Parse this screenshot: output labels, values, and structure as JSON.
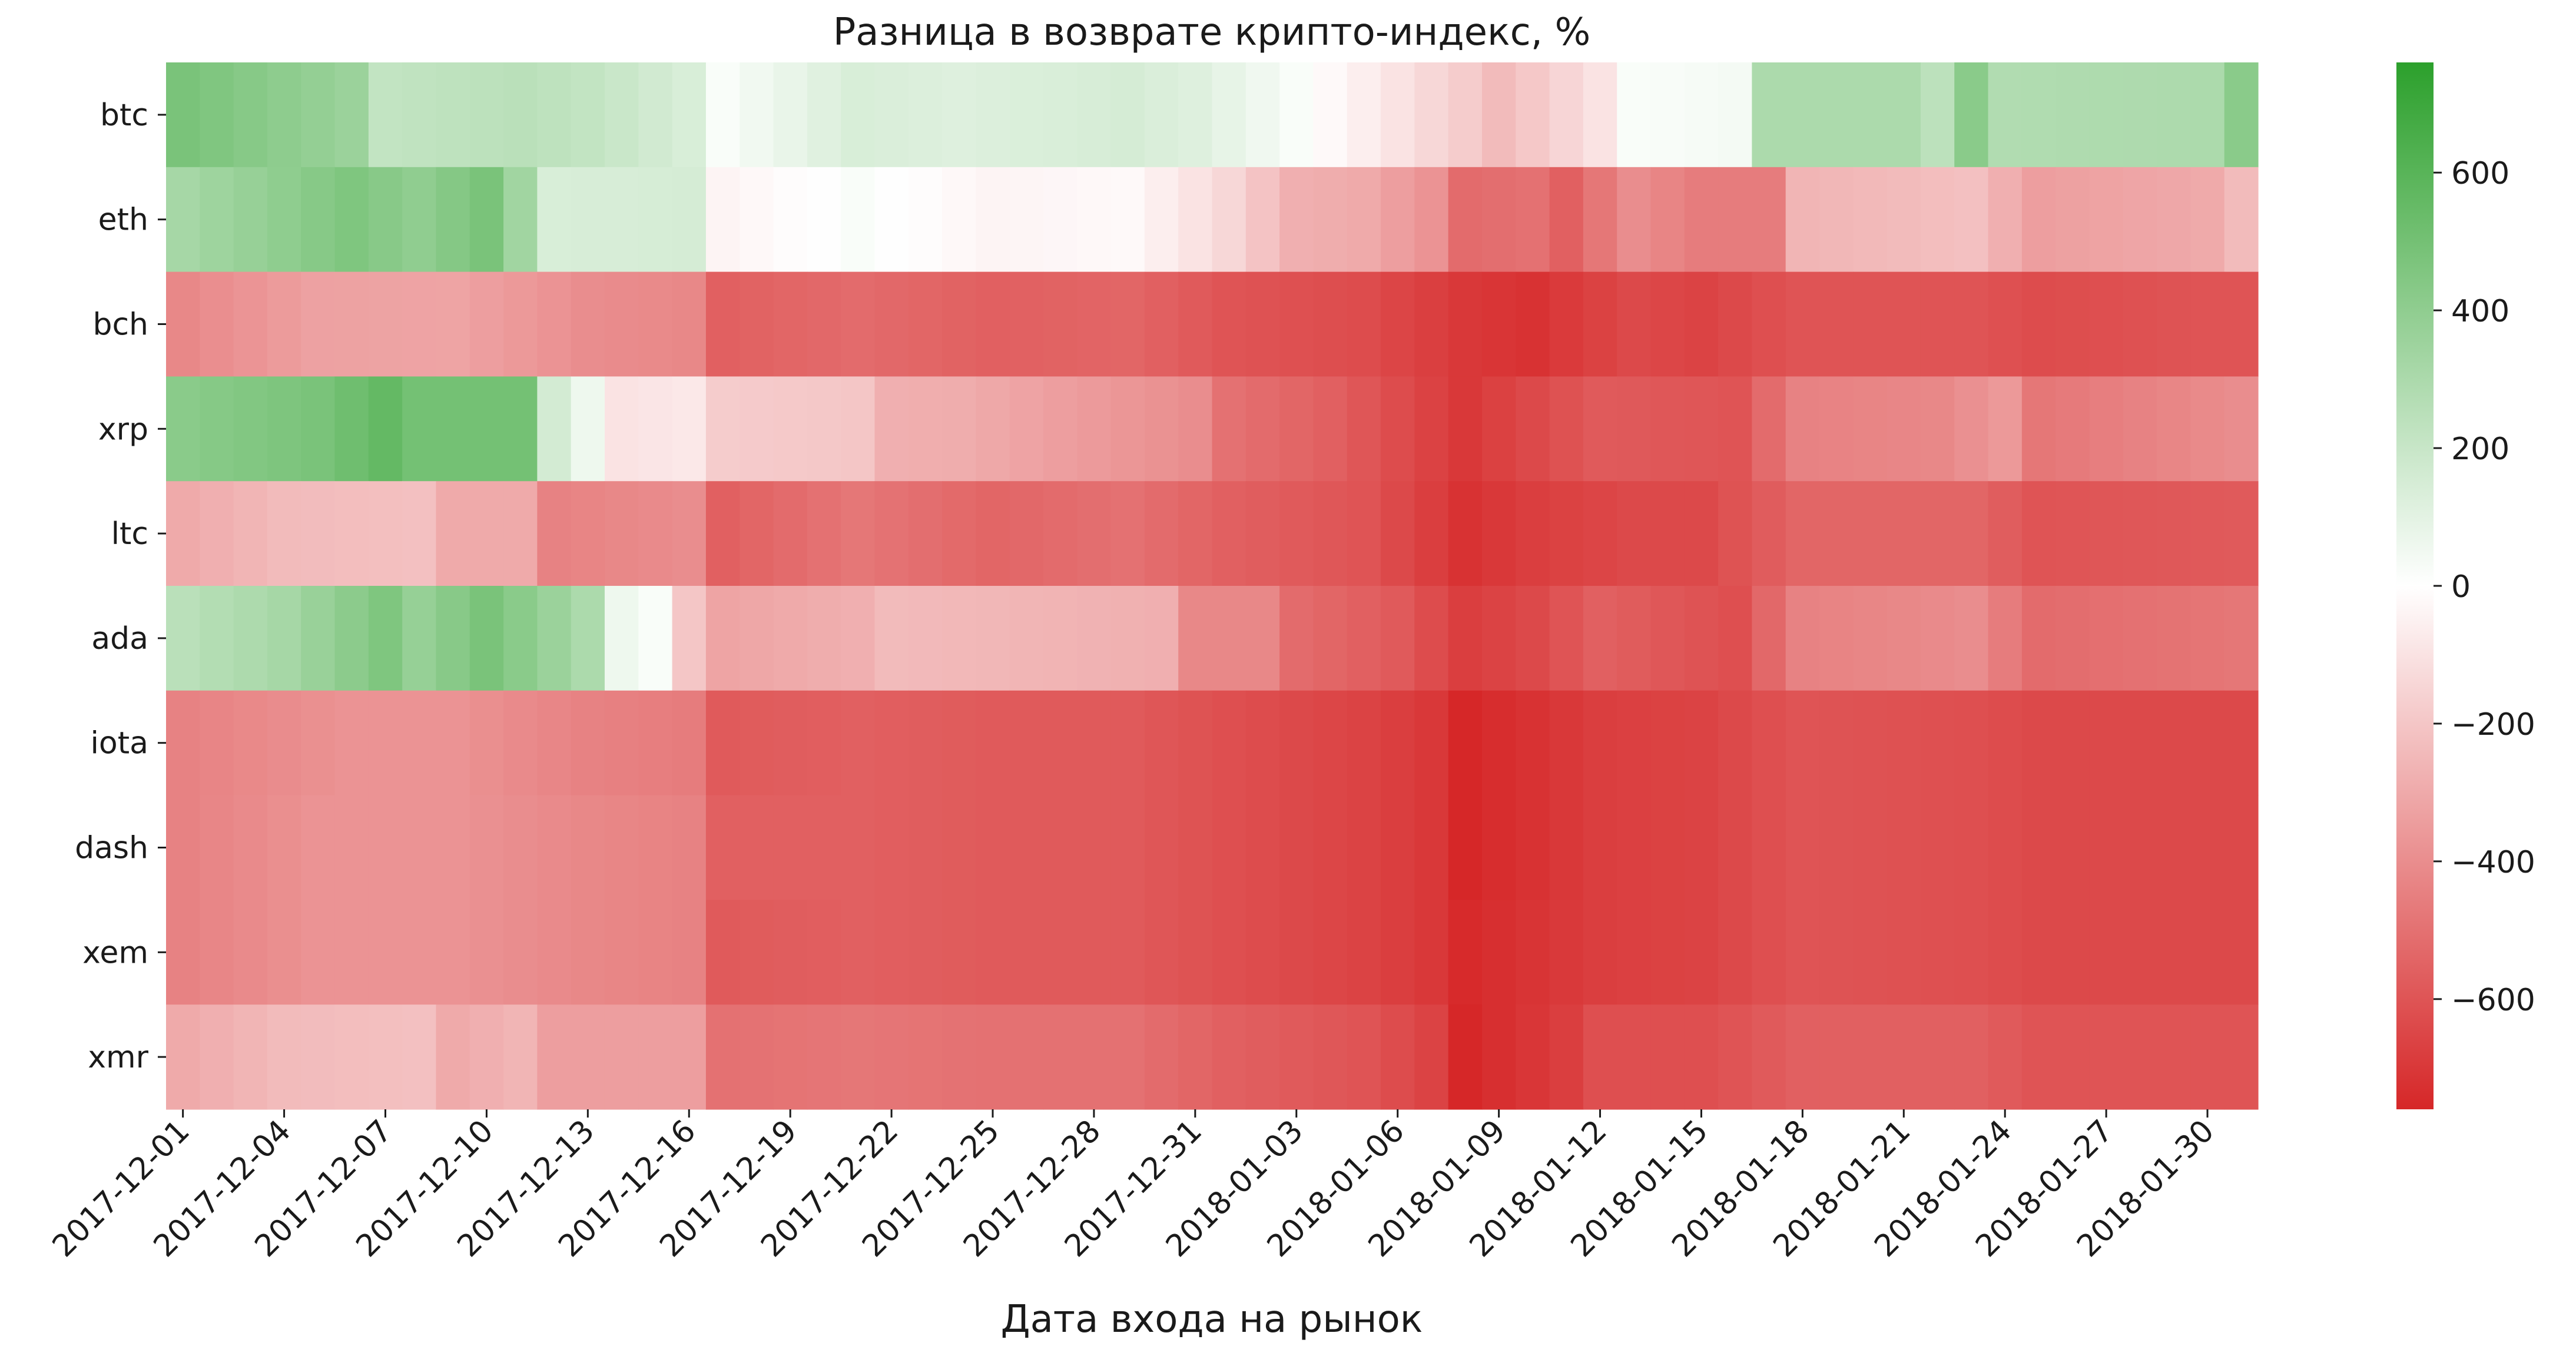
{
  "chart_data": {
    "type": "heatmap",
    "title": "Разница в возврате крипто-индекс, %",
    "xlabel": "Дата входа на рынок",
    "ylabel": "",
    "rows": [
      "btc",
      "eth",
      "bch",
      "xrp",
      "ltc",
      "ada",
      "iota",
      "dash",
      "xem",
      "xmr"
    ],
    "x_start": "2017-12-01",
    "x_end": "2018-01-31",
    "x_tick_labels": [
      "2017-12-01",
      "2017-12-04",
      "2017-12-07",
      "2017-12-10",
      "2017-12-13",
      "2017-12-16",
      "2017-12-19",
      "2017-12-22",
      "2017-12-25",
      "2017-12-28",
      "2017-12-31",
      "2018-01-03",
      "2018-01-06",
      "2018-01-09",
      "2018-01-12",
      "2018-01-15",
      "2018-01-18",
      "2018-01-21",
      "2018-01-24",
      "2018-01-27",
      "2018-01-30"
    ],
    "colorbar": {
      "min": -760,
      "max": 760,
      "ticks": [
        600,
        400,
        200,
        0,
        -200,
        -400,
        -600
      ],
      "tick_labels": [
        "600",
        "400",
        "200",
        "0",
        "−200",
        "−400",
        "−600"
      ],
      "low_color": "#d62728",
      "mid_color": "#ffffff",
      "high_color": "#2ca02c"
    },
    "keyframes": [
      {
        "row": "btc",
        "points": [
          [
            0,
            480
          ],
          [
            5,
            360
          ],
          [
            6,
            220
          ],
          [
            10,
            250
          ],
          [
            12,
            220
          ],
          [
            15,
            140
          ],
          [
            16,
            20
          ],
          [
            20,
            140
          ],
          [
            23,
            120
          ],
          [
            28,
            150
          ],
          [
            30,
            120
          ],
          [
            33,
            20
          ],
          [
            36,
            -100
          ],
          [
            38,
            -180
          ],
          [
            39,
            -240
          ],
          [
            42,
            -100
          ],
          [
            43,
            20
          ],
          [
            46,
            40
          ],
          [
            47,
            300
          ],
          [
            51,
            300
          ],
          [
            52,
            240
          ],
          [
            53,
            420
          ],
          [
            54,
            280
          ],
          [
            60,
            300
          ],
          [
            61,
            420
          ]
        ]
      },
      {
        "row": "eth",
        "points": [
          [
            0,
            320
          ],
          [
            5,
            460
          ],
          [
            7,
            400
          ],
          [
            9,
            480
          ],
          [
            10,
            340
          ],
          [
            11,
            140
          ],
          [
            15,
            150
          ],
          [
            16,
            -40
          ],
          [
            20,
            20
          ],
          [
            24,
            -40
          ],
          [
            28,
            -20
          ],
          [
            31,
            -140
          ],
          [
            33,
            -280
          ],
          [
            35,
            -300
          ],
          [
            37,
            -380
          ],
          [
            38,
            -520
          ],
          [
            40,
            -500
          ],
          [
            41,
            -560
          ],
          [
            43,
            -400
          ],
          [
            45,
            -460
          ],
          [
            47,
            -460
          ],
          [
            48,
            -260
          ],
          [
            51,
            -240
          ],
          [
            53,
            -220
          ],
          [
            55,
            -340
          ],
          [
            60,
            -300
          ],
          [
            61,
            -240
          ]
        ]
      },
      {
        "row": "bch",
        "points": [
          [
            0,
            -420
          ],
          [
            4,
            -330
          ],
          [
            8,
            -320
          ],
          [
            12,
            -400
          ],
          [
            15,
            -420
          ],
          [
            16,
            -560
          ],
          [
            20,
            -520
          ],
          [
            24,
            -560
          ],
          [
            28,
            -540
          ],
          [
            31,
            -600
          ],
          [
            35,
            -630
          ],
          [
            38,
            -700
          ],
          [
            40,
            -720
          ],
          [
            43,
            -640
          ],
          [
            45,
            -660
          ],
          [
            48,
            -600
          ],
          [
            53,
            -600
          ],
          [
            55,
            -630
          ],
          [
            60,
            -600
          ],
          [
            61,
            -600
          ]
        ]
      },
      {
        "row": "xrp",
        "points": [
          [
            0,
            420
          ],
          [
            4,
            480
          ],
          [
            6,
            560
          ],
          [
            7,
            500
          ],
          [
            10,
            500
          ],
          [
            11,
            160
          ],
          [
            12,
            60
          ],
          [
            13,
            -100
          ],
          [
            15,
            -80
          ],
          [
            16,
            -180
          ],
          [
            20,
            -200
          ],
          [
            21,
            -280
          ],
          [
            23,
            -290
          ],
          [
            26,
            -340
          ],
          [
            30,
            -400
          ],
          [
            31,
            -500
          ],
          [
            34,
            -560
          ],
          [
            38,
            -700
          ],
          [
            40,
            -640
          ],
          [
            42,
            -580
          ],
          [
            46,
            -600
          ],
          [
            48,
            -440
          ],
          [
            52,
            -420
          ],
          [
            54,
            -360
          ],
          [
            55,
            -480
          ],
          [
            61,
            -400
          ]
        ]
      },
      {
        "row": "ltc",
        "points": [
          [
            0,
            -300
          ],
          [
            3,
            -240
          ],
          [
            7,
            -220
          ],
          [
            8,
            -300
          ],
          [
            10,
            -300
          ],
          [
            11,
            -440
          ],
          [
            15,
            -400
          ],
          [
            16,
            -560
          ],
          [
            20,
            -480
          ],
          [
            24,
            -540
          ],
          [
            28,
            -500
          ],
          [
            31,
            -560
          ],
          [
            35,
            -600
          ],
          [
            38,
            -720
          ],
          [
            40,
            -680
          ],
          [
            43,
            -640
          ],
          [
            45,
            -640
          ],
          [
            48,
            -540
          ],
          [
            53,
            -540
          ],
          [
            55,
            -600
          ],
          [
            61,
            -580
          ]
        ]
      },
      {
        "row": "ada",
        "points": [
          [
            0,
            250
          ],
          [
            3,
            320
          ],
          [
            6,
            460
          ],
          [
            7,
            380
          ],
          [
            9,
            480
          ],
          [
            10,
            420
          ],
          [
            12,
            300
          ],
          [
            13,
            60
          ],
          [
            14,
            20
          ],
          [
            15,
            -200
          ],
          [
            16,
            -320
          ],
          [
            20,
            -280
          ],
          [
            21,
            -240
          ],
          [
            29,
            -280
          ],
          [
            30,
            -420
          ],
          [
            32,
            -420
          ],
          [
            33,
            -520
          ],
          [
            36,
            -580
          ],
          [
            38,
            -680
          ],
          [
            40,
            -640
          ],
          [
            42,
            -560
          ],
          [
            46,
            -620
          ],
          [
            48,
            -440
          ],
          [
            51,
            -420
          ],
          [
            53,
            -400
          ],
          [
            55,
            -520
          ],
          [
            61,
            -480
          ]
        ]
      },
      {
        "row": "iota",
        "points": [
          [
            0,
            -440
          ],
          [
            5,
            -380
          ],
          [
            8,
            -380
          ],
          [
            12,
            -440
          ],
          [
            15,
            -460
          ],
          [
            16,
            -580
          ],
          [
            20,
            -560
          ],
          [
            24,
            -580
          ],
          [
            28,
            -580
          ],
          [
            31,
            -620
          ],
          [
            35,
            -660
          ],
          [
            37,
            -700
          ],
          [
            38,
            -760
          ],
          [
            42,
            -680
          ],
          [
            45,
            -660
          ],
          [
            48,
            -600
          ],
          [
            53,
            -620
          ],
          [
            55,
            -640
          ],
          [
            61,
            -640
          ]
        ]
      },
      {
        "row": "dash",
        "points": [
          [
            0,
            -440
          ],
          [
            4,
            -380
          ],
          [
            8,
            -380
          ],
          [
            12,
            -420
          ],
          [
            15,
            -440
          ],
          [
            16,
            -560
          ],
          [
            20,
            -560
          ],
          [
            24,
            -580
          ],
          [
            28,
            -580
          ],
          [
            31,
            -620
          ],
          [
            35,
            -660
          ],
          [
            37,
            -700
          ],
          [
            38,
            -760
          ],
          [
            42,
            -680
          ],
          [
            45,
            -660
          ],
          [
            48,
            -600
          ],
          [
            53,
            -620
          ],
          [
            55,
            -640
          ],
          [
            61,
            -640
          ]
        ]
      },
      {
        "row": "xem",
        "points": [
          [
            0,
            -440
          ],
          [
            4,
            -380
          ],
          [
            8,
            -380
          ],
          [
            12,
            -420
          ],
          [
            15,
            -440
          ],
          [
            16,
            -580
          ],
          [
            20,
            -560
          ],
          [
            24,
            -580
          ],
          [
            28,
            -580
          ],
          [
            31,
            -620
          ],
          [
            35,
            -660
          ],
          [
            37,
            -700
          ],
          [
            38,
            -750
          ],
          [
            42,
            -680
          ],
          [
            45,
            -660
          ],
          [
            48,
            -600
          ],
          [
            53,
            -620
          ],
          [
            55,
            -640
          ],
          [
            61,
            -640
          ]
        ]
      },
      {
        "row": "xmr",
        "points": [
          [
            0,
            -300
          ],
          [
            3,
            -240
          ],
          [
            7,
            -220
          ],
          [
            8,
            -300
          ],
          [
            10,
            -260
          ],
          [
            11,
            -340
          ],
          [
            15,
            -340
          ],
          [
            16,
            -500
          ],
          [
            20,
            -480
          ],
          [
            24,
            -500
          ],
          [
            28,
            -500
          ],
          [
            31,
            -560
          ],
          [
            35,
            -600
          ],
          [
            37,
            -660
          ],
          [
            38,
            -760
          ],
          [
            41,
            -680
          ],
          [
            42,
            -620
          ],
          [
            45,
            -620
          ],
          [
            48,
            -560
          ],
          [
            53,
            -560
          ],
          [
            55,
            -600
          ],
          [
            61,
            -600
          ]
        ]
      }
    ]
  }
}
